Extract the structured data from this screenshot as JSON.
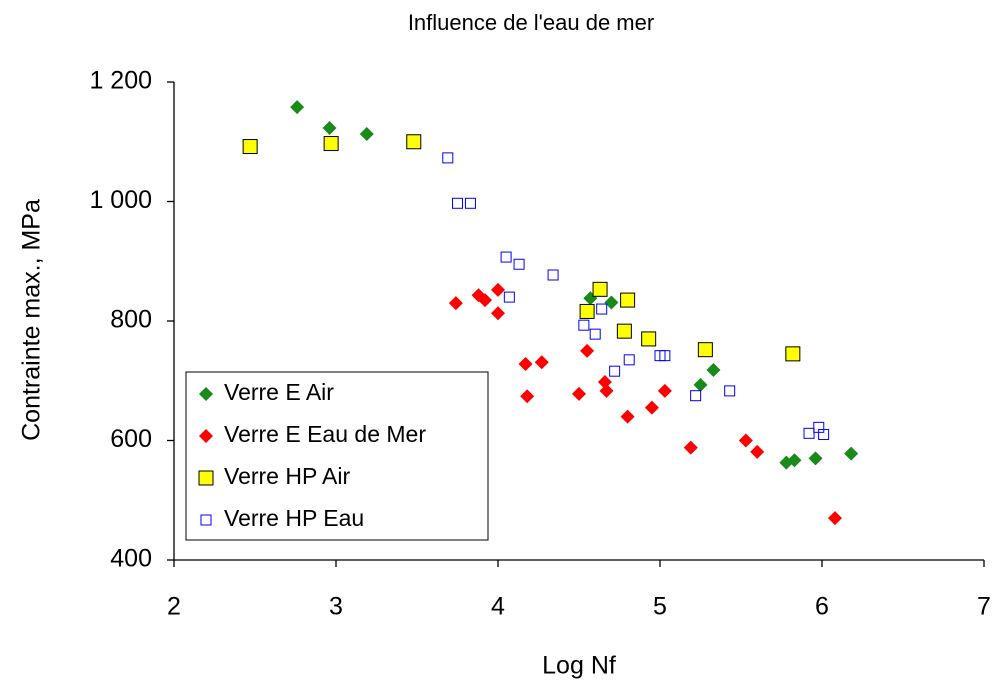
{
  "chart_data": {
    "type": "scatter",
    "title": "Influence de l'eau de mer",
    "xlabel": "Log Nf",
    "ylabel": "Contrainte max., MPa",
    "xlim": [
      2,
      7
    ],
    "xticks": [
      2,
      3,
      4,
      5,
      6,
      7
    ],
    "ylim": [
      400,
      1200
    ],
    "yticks": [
      400,
      600,
      800,
      {
        "value": 1000,
        "label": "1 000"
      },
      {
        "value": 1200,
        "label": "1 200"
      }
    ],
    "grid": false,
    "legend": "lower left",
    "series": [
      {
        "name": "Verre E Air",
        "color": "#1a8a1a",
        "marker": "diamond",
        "x": [
          2.76,
          2.96,
          3.19,
          4.57,
          4.7,
          5.25,
          5.33,
          5.78,
          5.83,
          5.96,
          6.18
        ],
        "values": [
          1158,
          1123,
          1113,
          838,
          831,
          693,
          718,
          563,
          567,
          570,
          578
        ]
      },
      {
        "name": "Verre E Eau de Mer",
        "color": "#ff0000",
        "marker": "diamond",
        "x": [
          3.74,
          3.88,
          3.92,
          4.0,
          4.0,
          4.17,
          4.27,
          4.18,
          4.5,
          4.55,
          4.66,
          4.67,
          4.8,
          4.95,
          5.03,
          5.19,
          5.53,
          5.6,
          6.08
        ],
        "values": [
          830,
          843,
          835,
          852,
          813,
          728,
          731,
          674,
          678,
          750,
          698,
          683,
          640,
          655,
          683,
          588,
          600,
          581,
          470
        ]
      },
      {
        "name": "Verre HP Air",
        "color": "#ffff00",
        "marker": "square",
        "x": [
          2.47,
          2.97,
          3.48,
          4.55,
          4.63,
          4.78,
          4.8,
          4.93,
          5.28,
          5.82
        ],
        "values": [
          1092,
          1097,
          1100,
          816,
          853,
          783,
          835,
          770,
          752,
          745
        ]
      },
      {
        "name": "Verre HP Eau",
        "color": "#0000ff",
        "marker": "open-square",
        "x": [
          3.69,
          3.75,
          3.83,
          4.05,
          4.07,
          4.13,
          4.34,
          4.53,
          4.6,
          4.64,
          4.72,
          4.81,
          5.0,
          5.03,
          5.22,
          5.43,
          5.92,
          5.98,
          6.01
        ],
        "values": [
          1073,
          997,
          997,
          907,
          840,
          895,
          877,
          793,
          778,
          820,
          716,
          735,
          742,
          742,
          675,
          683,
          612,
          622,
          610
        ]
      }
    ]
  }
}
